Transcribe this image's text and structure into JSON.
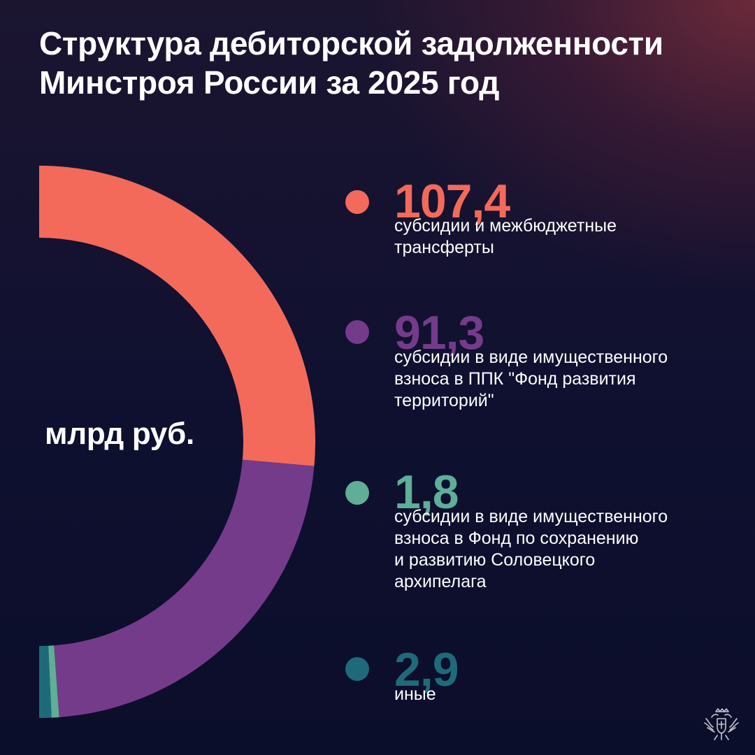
{
  "title_lines": [
    "Структура дебиторской задолженности",
    "Минстроя России за 2025 год"
  ],
  "center_label": "млрд руб.",
  "chart_data": {
    "type": "pie",
    "variant": "half-donut",
    "unit": "млрд руб.",
    "categories": [
      "субсидии и межбюджетные трансферты",
      "субсидии в виде имущественного взноса в ППК \"Фонд развития территорий\"",
      "субсидии в виде имущественного взноса в Фонд по сохранению и развитию Соловецкого архипелага",
      "иные"
    ],
    "values": [
      107.4,
      91.3,
      1.8,
      2.9
    ],
    "colors": [
      "#f36a5b",
      "#743b8b",
      "#5fae98",
      "#1f6a7a"
    ],
    "title": "Структура дебиторской задолженности Минстроя России за 2025 год"
  },
  "legend": [
    {
      "value": "107,4",
      "color": "#f36a5b",
      "lines": [
        "субсидии и межбюджетные",
        "трансферты"
      ]
    },
    {
      "value": "91,3",
      "color": "#743b8b",
      "lines": [
        "субсидии в виде имущественного",
        "взноса в ППК \"Фонд развития",
        "территорий\""
      ]
    },
    {
      "value": "1,8",
      "color": "#5fae98",
      "lines": [
        "субсидии в виде имущественного",
        "взноса в Фонд по сохранению",
        "и развитию Соловецкого",
        "архипелага"
      ]
    },
    {
      "value": "2,9",
      "color": "#1f6a7a",
      "lines": [
        "иные"
      ]
    }
  ],
  "emblem_icon": "double-headed-eagle-emblem-icon"
}
